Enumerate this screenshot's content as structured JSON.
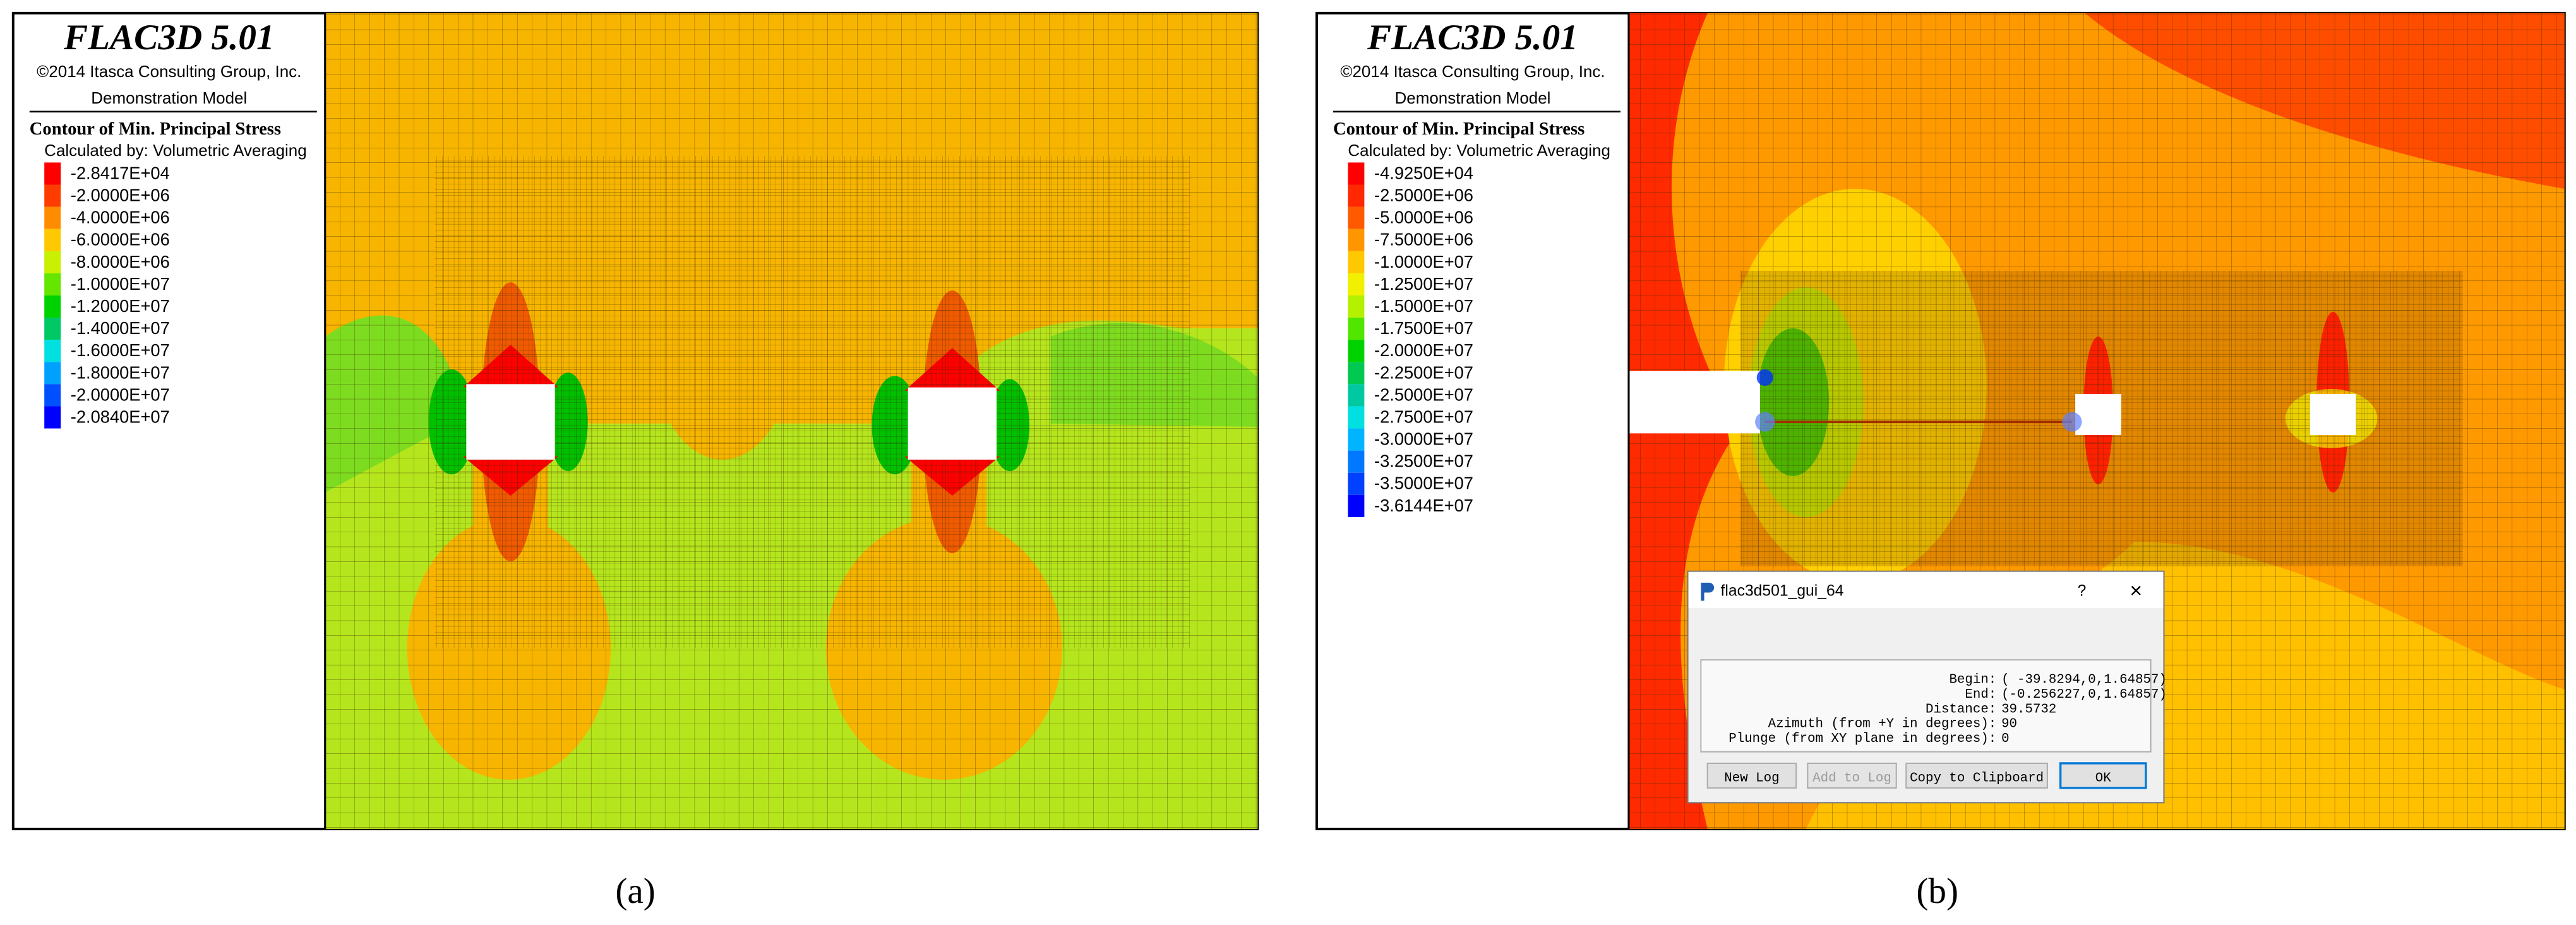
{
  "panels": [
    {
      "caption": "(a)",
      "header": {
        "title": "FLAC3D 5.01",
        "copyright": "©2014 Itasca Consulting Group, Inc.",
        "model": "Demonstration Model"
      },
      "legend": {
        "title": "Contour of Min. Principal Stress",
        "subtitle": "Calculated by: Volumetric Averaging",
        "items": [
          {
            "label": "-2.8417E+04",
            "color": "#ff0000"
          },
          {
            "label": "-2.0000E+06",
            "color": "#ff3c00"
          },
          {
            "label": "-4.0000E+06",
            "color": "#ff8c00"
          },
          {
            "label": "-6.0000E+06",
            "color": "#ffc800"
          },
          {
            "label": "-8.0000E+06",
            "color": "#c8f000"
          },
          {
            "label": "-1.0000E+07",
            "color": "#64e600"
          },
          {
            "label": "-1.2000E+07",
            "color": "#00d200"
          },
          {
            "label": "-1.4000E+07",
            "color": "#00c864"
          },
          {
            "label": "-1.6000E+07",
            "color": "#00e0e0"
          },
          {
            "label": "-1.8000E+07",
            "color": "#00a0ff"
          },
          {
            "label": "-2.0000E+07",
            "color": "#0050ff"
          },
          {
            "label": "-2.0840E+07",
            "color": "#0000ff"
          }
        ]
      }
    },
    {
      "caption": "(b)",
      "header": {
        "title": "FLAC3D 5.01",
        "copyright": "©2014 Itasca Consulting Group, Inc.",
        "model": "Demonstration Model"
      },
      "legend": {
        "title": "Contour of Min. Principal Stress",
        "subtitle": "Calculated by: Volumetric Averaging",
        "items": [
          {
            "label": "-4.9250E+04",
            "color": "#ff0000"
          },
          {
            "label": "-2.5000E+06",
            "color": "#ff2800"
          },
          {
            "label": "-5.0000E+06",
            "color": "#ff5a00"
          },
          {
            "label": "-7.5000E+06",
            "color": "#ff9600"
          },
          {
            "label": "-1.0000E+07",
            "color": "#ffc800"
          },
          {
            "label": "-1.2500E+07",
            "color": "#f0f000"
          },
          {
            "label": "-1.5000E+07",
            "color": "#b4f000"
          },
          {
            "label": "-1.7500E+07",
            "color": "#50e600"
          },
          {
            "label": "-2.0000E+07",
            "color": "#00d200"
          },
          {
            "label": "-2.2500E+07",
            "color": "#00c850"
          },
          {
            "label": "-2.5000E+07",
            "color": "#00c8a0"
          },
          {
            "label": "-2.7500E+07",
            "color": "#00e0e0"
          },
          {
            "label": "-3.0000E+07",
            "color": "#00b4ff"
          },
          {
            "label": "-3.2500E+07",
            "color": "#0078ff"
          },
          {
            "label": "-3.5000E+07",
            "color": "#0040ff"
          },
          {
            "label": "-3.6144E+07",
            "color": "#0000ff"
          }
        ]
      },
      "dialog": {
        "title": "flac3d501_gui_64",
        "help": "?",
        "close": "×",
        "lines": [
          {
            "label": "Begin:",
            "value": "( -39.8294,0,1.64857)"
          },
          {
            "label": "End:",
            "value": "(-0.256227,0,1.64857)"
          },
          {
            "label": "Distance:",
            "value": "39.5732"
          },
          {
            "label": "Azimuth (from +Y in degrees):",
            "value": "90"
          },
          {
            "label": "Plunge (from XY plane in degrees):",
            "value": "0"
          }
        ],
        "buttons": [
          "New Log",
          "Add to Log",
          "Copy to Clipboard",
          "OK"
        ]
      }
    }
  ]
}
